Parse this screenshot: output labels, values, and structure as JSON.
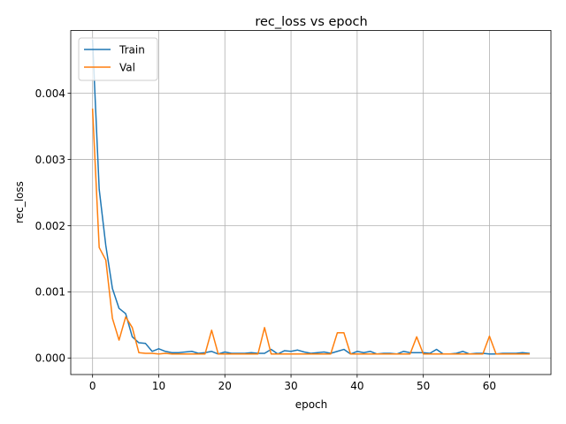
{
  "chart_data": {
    "type": "line",
    "title": "rec_loss vs epoch",
    "xlabel": "epoch",
    "ylabel": "rec_loss",
    "xlim": [
      -3.3,
      69.3
    ],
    "ylim": [
      -0.00025,
      0.00495
    ],
    "xticks": [
      0,
      10,
      20,
      30,
      40,
      50,
      60
    ],
    "xtick_labels": [
      "0",
      "10",
      "20",
      "30",
      "40",
      "50",
      "60"
    ],
    "yticks": [
      0.0,
      0.001,
      0.002,
      0.003,
      0.004
    ],
    "ytick_labels": [
      "0.000",
      "0.001",
      "0.002",
      "0.003",
      "0.004"
    ],
    "grid": true,
    "legend_position": "top-left",
    "x": [
      0,
      1,
      2,
      3,
      4,
      5,
      6,
      7,
      8,
      9,
      10,
      11,
      12,
      13,
      14,
      15,
      16,
      17,
      18,
      19,
      20,
      21,
      22,
      23,
      24,
      25,
      26,
      27,
      28,
      29,
      30,
      31,
      32,
      33,
      34,
      35,
      36,
      37,
      38,
      39,
      40,
      41,
      42,
      43,
      44,
      45,
      46,
      47,
      48,
      49,
      50,
      51,
      52,
      53,
      54,
      55,
      56,
      57,
      58,
      59,
      60,
      61,
      62,
      63,
      64,
      65,
      66
    ],
    "series": [
      {
        "name": "Train",
        "color": "#1f77b4",
        "values": [
          0.0048,
          0.00255,
          0.0017,
          0.00105,
          0.00075,
          0.00067,
          0.00032,
          0.00023,
          0.00022,
          0.0001,
          0.00014,
          0.0001,
          8e-05,
          8e-05,
          9e-05,
          0.0001,
          7e-05,
          8e-05,
          0.0001,
          6e-05,
          9e-05,
          7e-05,
          7e-05,
          7e-05,
          8e-05,
          7e-05,
          7e-05,
          0.00013,
          6e-05,
          0.00011,
          0.0001,
          0.00012,
          9e-05,
          7e-05,
          8e-05,
          9e-05,
          7e-05,
          0.0001,
          0.00013,
          6e-05,
          0.0001,
          8e-05,
          0.0001,
          6e-05,
          7e-05,
          7e-05,
          6e-05,
          0.0001,
          8e-05,
          8e-05,
          8e-05,
          7e-05,
          0.00013,
          6e-05,
          6e-05,
          7e-05,
          0.0001,
          6e-05,
          7e-05,
          7e-05,
          6e-05,
          6e-05,
          7e-05,
          7e-05,
          7e-05,
          8e-05,
          7e-05
        ]
      },
      {
        "name": "Val",
        "color": "#ff7f0e",
        "values": [
          0.00376,
          0.00167,
          0.00148,
          0.0006,
          0.00027,
          0.00062,
          0.00046,
          8e-05,
          7e-05,
          7e-05,
          6e-05,
          7e-05,
          6e-05,
          6e-05,
          6e-05,
          6e-05,
          6e-05,
          6e-05,
          0.00042,
          6e-05,
          6e-05,
          6e-05,
          6e-05,
          6e-05,
          6e-05,
          6e-05,
          0.00046,
          6e-05,
          6e-05,
          6e-05,
          6e-05,
          6e-05,
          6e-05,
          6e-05,
          6e-05,
          6e-05,
          6e-05,
          0.00038,
          0.00038,
          6e-05,
          6e-05,
          6e-05,
          6e-05,
          6e-05,
          6e-05,
          6e-05,
          6e-05,
          6e-05,
          6e-05,
          0.00032,
          6e-05,
          6e-05,
          6e-05,
          6e-05,
          6e-05,
          6e-05,
          6e-05,
          6e-05,
          6e-05,
          6e-05,
          0.00033,
          6e-05,
          6e-05,
          6e-05,
          6e-05,
          6e-05,
          6e-05
        ]
      }
    ]
  }
}
